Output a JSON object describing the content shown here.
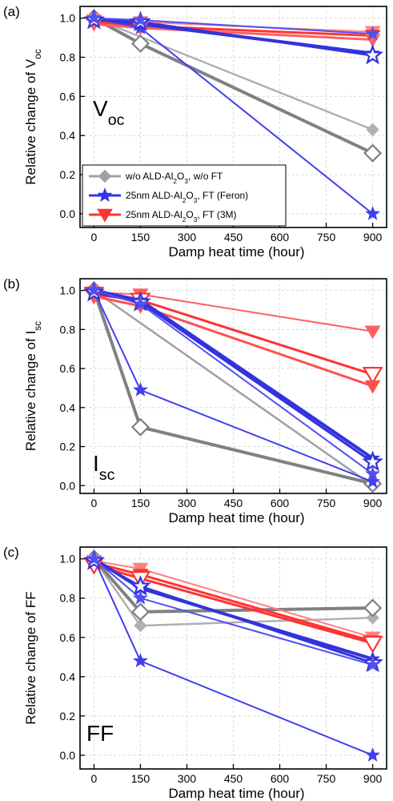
{
  "chart_data": [
    {
      "type": "line",
      "panel_label": "(a)",
      "annotation": "V",
      "annotation_sub": "oc",
      "xlabel": "Damp heat time (hour)",
      "ylabel": "Relative change of V",
      "ylabel_sub": "oc",
      "xlim": [
        -45,
        945
      ],
      "ylim": [
        -0.07,
        1.06
      ],
      "xticks": [
        0,
        150,
        300,
        450,
        600,
        750,
        900
      ],
      "yticks": [
        0.0,
        0.2,
        0.4,
        0.6,
        0.8,
        1.0
      ],
      "grid": true,
      "legend": {
        "placement": "lower-left",
        "entries": [
          {
            "pre": "w/o ALD-Al",
            "sub1": "2",
            "mid": "O",
            "sub2": "3",
            "post": ", w/o FT",
            "color": "#a0a0a0",
            "marker": "diamond"
          },
          {
            "pre": "25nm ALD-Al",
            "sub1": "2",
            "mid": "O",
            "sub2": "3",
            "post": ", FT (Feron)",
            "color": "#3333ee",
            "marker": "star"
          },
          {
            "pre": "25nm ALD-Al",
            "sub1": "2",
            "mid": "O",
            "sub2": "3",
            "post": ", FT (3M)",
            "color": "#ff3333",
            "marker": "triangle"
          }
        ]
      },
      "series": [
        {
          "group": "gray",
          "color": "#b0b0b0",
          "marker": "diamond-filled",
          "width": 2.5,
          "x": [
            0,
            900
          ],
          "y": [
            1.0,
            0.43
          ]
        },
        {
          "group": "gray",
          "color": "#808080",
          "marker": "diamond-open",
          "width": 4,
          "x": [
            0,
            150,
            900
          ],
          "y": [
            1.0,
            0.87,
            0.31
          ]
        },
        {
          "group": "blue",
          "color": "#4040ee",
          "marker": "star-filled",
          "width": 2,
          "x": [
            0,
            150,
            900
          ],
          "y": [
            1.0,
            0.95,
            0.0
          ]
        },
        {
          "group": "blue",
          "color": "#3333dd",
          "marker": "star-filled",
          "width": 4,
          "x": [
            0,
            150,
            900
          ],
          "y": [
            1.0,
            0.97,
            0.82
          ]
        },
        {
          "group": "blue",
          "color": "#3333dd",
          "marker": "star-open",
          "width": 3,
          "x": [
            0,
            150,
            900
          ],
          "y": [
            0.99,
            0.98,
            0.81
          ]
        },
        {
          "group": "blue",
          "color": "#5050f0",
          "marker": "star-filled",
          "width": 2,
          "x": [
            0,
            150,
            900
          ],
          "y": [
            1.0,
            0.99,
            0.92
          ]
        },
        {
          "group": "red",
          "color": "#ff8080",
          "marker": "triangle-filled",
          "width": 2,
          "x": [
            0,
            150,
            900
          ],
          "y": [
            0.99,
            0.98,
            0.93
          ]
        },
        {
          "group": "red",
          "color": "#ff3333",
          "marker": "triangle-filled",
          "width": 3,
          "x": [
            0,
            150,
            900
          ],
          "y": [
            0.98,
            0.96,
            0.91
          ]
        },
        {
          "group": "red",
          "color": "#ff6060",
          "marker": "triangle-filled",
          "width": 3,
          "x": [
            0,
            150,
            900
          ],
          "y": [
            0.97,
            0.95,
            0.89
          ]
        }
      ]
    },
    {
      "type": "line",
      "panel_label": "(b)",
      "annotation": "I",
      "annotation_sub": "sc",
      "xlabel": "Damp heat time (hour)",
      "ylabel": "Relative change of I",
      "ylabel_sub": "sc",
      "xlim": [
        -45,
        945
      ],
      "ylim": [
        -0.04,
        1.06
      ],
      "xticks": [
        0,
        150,
        300,
        450,
        600,
        750,
        900
      ],
      "yticks": [
        0.0,
        0.2,
        0.4,
        0.6,
        0.8,
        1.0
      ],
      "grid": true,
      "series": [
        {
          "group": "gray",
          "color": "#a0a0a0",
          "marker": "diamond-filled",
          "width": 2.5,
          "x": [
            0,
            900
          ],
          "y": [
            1.0,
            0.0
          ]
        },
        {
          "group": "gray",
          "color": "#808080",
          "marker": "diamond-open",
          "width": 4,
          "x": [
            0,
            150,
            900
          ],
          "y": [
            1.0,
            0.3,
            0.01
          ]
        },
        {
          "group": "blue",
          "color": "#4040ee",
          "marker": "star-filled",
          "width": 2,
          "x": [
            0,
            150,
            900
          ],
          "y": [
            1.0,
            0.49,
            0.02
          ]
        },
        {
          "group": "blue",
          "color": "#3333dd",
          "marker": "star-filled",
          "width": 4,
          "x": [
            0,
            150,
            900
          ],
          "y": [
            1.0,
            0.95,
            0.14
          ]
        },
        {
          "group": "blue",
          "color": "#3333dd",
          "marker": "star-open",
          "width": 3,
          "x": [
            0,
            150,
            900
          ],
          "y": [
            0.99,
            0.94,
            0.12
          ]
        },
        {
          "group": "blue",
          "color": "#5050f0",
          "marker": "star-filled",
          "width": 2,
          "x": [
            0,
            150,
            900
          ],
          "y": [
            1.0,
            0.93,
            0.06
          ]
        },
        {
          "group": "red",
          "color": "#ff6060",
          "marker": "triangle-filled",
          "width": 2,
          "x": [
            0,
            150,
            900
          ],
          "y": [
            0.99,
            0.98,
            0.79
          ]
        },
        {
          "group": "red",
          "color": "#ff3333",
          "marker": "triangle-open",
          "width": 3,
          "x": [
            0,
            150,
            900
          ],
          "y": [
            0.98,
            0.95,
            0.57
          ]
        },
        {
          "group": "red",
          "color": "#ff5050",
          "marker": "triangle-filled",
          "width": 3,
          "x": [
            0,
            150,
            900
          ],
          "y": [
            0.97,
            0.92,
            0.51
          ]
        }
      ]
    },
    {
      "type": "line",
      "panel_label": "(c)",
      "annotation": "FF",
      "annotation_sub": "",
      "xlabel": "Damp heat time (hour)",
      "ylabel": "Relative change of FF",
      "ylabel_sub": "",
      "xlim": [
        -45,
        945
      ],
      "ylim": [
        -0.07,
        1.06
      ],
      "xticks": [
        0,
        150,
        300,
        450,
        600,
        750,
        900
      ],
      "yticks": [
        0.0,
        0.2,
        0.4,
        0.6,
        0.8,
        1.0
      ],
      "grid": true,
      "series": [
        {
          "group": "gray",
          "color": "#b0b0b0",
          "marker": "diamond-filled",
          "width": 2.5,
          "x": [
            0,
            150,
            900
          ],
          "y": [
            1.0,
            0.66,
            0.7
          ]
        },
        {
          "group": "gray",
          "color": "#808080",
          "marker": "diamond-open",
          "width": 4,
          "x": [
            0,
            150,
            900
          ],
          "y": [
            1.0,
            0.73,
            0.75
          ]
        },
        {
          "group": "blue",
          "color": "#4040ee",
          "marker": "star-filled",
          "width": 2,
          "x": [
            0,
            150,
            900
          ],
          "y": [
            1.0,
            0.48,
            0.0
          ]
        },
        {
          "group": "blue",
          "color": "#3333dd",
          "marker": "star-filled",
          "width": 4,
          "x": [
            0,
            150,
            900
          ],
          "y": [
            1.0,
            0.85,
            0.49
          ]
        },
        {
          "group": "blue",
          "color": "#3333dd",
          "marker": "star-open",
          "width": 3,
          "x": [
            0,
            150,
            900
          ],
          "y": [
            0.99,
            0.86,
            0.47
          ]
        },
        {
          "group": "blue",
          "color": "#5050f0",
          "marker": "star-filled",
          "width": 2,
          "x": [
            0,
            150,
            900
          ],
          "y": [
            1.0,
            0.8,
            0.46
          ]
        },
        {
          "group": "red",
          "color": "#ff8080",
          "marker": "triangle-filled",
          "width": 2,
          "x": [
            0,
            150,
            900
          ],
          "y": [
            0.99,
            0.95,
            0.6
          ]
        },
        {
          "group": "red",
          "color": "#ff3333",
          "marker": "triangle-filled",
          "width": 3,
          "x": [
            0,
            150,
            900
          ],
          "y": [
            0.98,
            0.92,
            0.58
          ]
        },
        {
          "group": "red",
          "color": "#ff3333",
          "marker": "triangle-open",
          "width": 3,
          "x": [
            0,
            150,
            900
          ],
          "y": [
            0.97,
            0.9,
            0.57
          ]
        }
      ]
    }
  ]
}
